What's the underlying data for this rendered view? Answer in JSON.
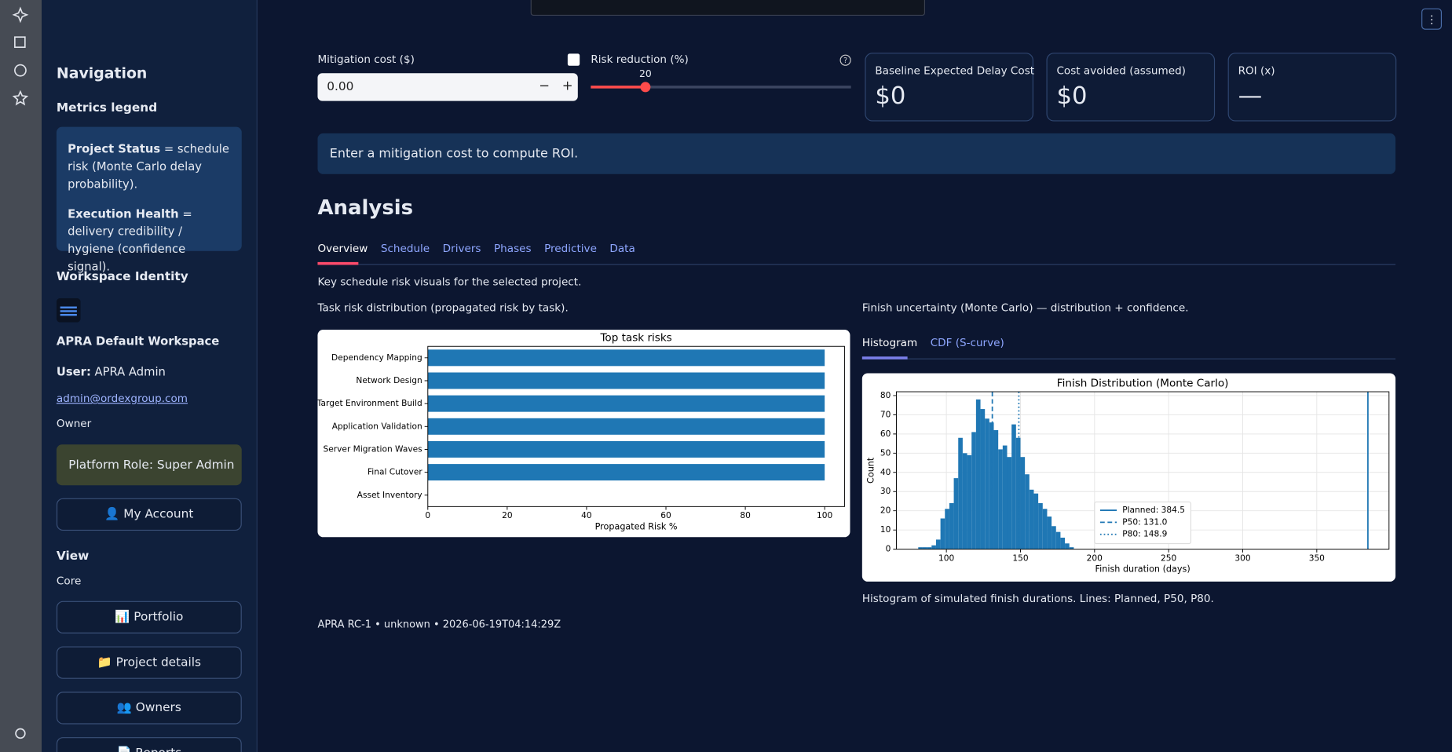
{
  "sidebar": {
    "navigation": "Navigation",
    "metrics_legend": {
      "title": "Metrics legend",
      "items": [
        {
          "term": "Project Status",
          "text": "= schedule risk (Monte Carlo delay probability)."
        },
        {
          "term": "Execution Health",
          "text": "= delivery credibility / hygiene (confidence signal)."
        }
      ]
    },
    "workspace": {
      "title": "Workspace Identity",
      "name": "APRA Default Workspace",
      "user_label": "User:",
      "user": "APRA Admin",
      "email": "admin@ordexgroup.com",
      "role": "Owner",
      "platform_role": "Platform Role: Super Admin"
    },
    "account_button": "👤 My Account",
    "view": {
      "title": "View",
      "mode": "Core",
      "buttons": [
        "📊 Portfolio",
        "📁 Project details",
        "👥 Owners",
        "📄 Reports"
      ]
    }
  },
  "controls": {
    "mitigation_cost": {
      "label": "Mitigation cost ($)",
      "value": "0.00"
    },
    "risk_reduction": {
      "label": "Risk reduction (%)",
      "value": 20
    }
  },
  "metrics": [
    {
      "label": "Baseline Expected Delay Cost",
      "value": "$0"
    },
    {
      "label": "Cost avoided (assumed)",
      "value": "$0"
    },
    {
      "label": "ROI (x)",
      "value": "—"
    }
  ],
  "info": "Enter a mitigation cost to compute ROI.",
  "analysis": {
    "title": "Analysis",
    "tabs": [
      "Overview",
      "Schedule",
      "Drivers",
      "Phases",
      "Predictive",
      "Data"
    ],
    "description": "Key schedule risk visuals for the selected project.",
    "left_caption": "Task risk distribution (propagated risk by task).",
    "right_caption": "Finish uncertainty (Monte Carlo) — distribution + confidence.",
    "chart_tabs": [
      "Histogram",
      "CDF (S-curve)"
    ],
    "histogram_caption": "Histogram of simulated finish durations. Lines: Planned, P50, P80."
  },
  "footer": "APRA RC-1 • unknown • 2026-06-19T04:14:29Z",
  "chart_data": [
    {
      "type": "bar",
      "orientation": "horizontal",
      "title": "Top task risks",
      "x_label": "Propagated Risk %",
      "categories": [
        "Dependency Mapping",
        "Network Design",
        "Target Environment Build",
        "Application Validation",
        "Server Migration Waves",
        "Final Cutover",
        "Asset Inventory"
      ],
      "values": [
        100,
        100,
        100,
        100,
        100,
        100,
        0
      ],
      "color": "#1f77b4",
      "xlim": [
        0,
        105
      ],
      "xticks": [
        0,
        20,
        40,
        60,
        80,
        100
      ],
      "grid": false
    },
    {
      "type": "histogram",
      "title": "Finish Distribution (Monte Carlo)",
      "x_label": "Finish duration (days)",
      "y_label": "Count",
      "bins": [
        81,
        84,
        87,
        90,
        93,
        96,
        99,
        102,
        105,
        108,
        111,
        114,
        117,
        120,
        123,
        126,
        129,
        132,
        135,
        138,
        141,
        144,
        147,
        150,
        153,
        156,
        159,
        162,
        165,
        168,
        171,
        174,
        177,
        180,
        183,
        186
      ],
      "values": [
        1,
        1,
        1,
        2,
        5,
        16,
        21,
        24,
        37,
        58,
        50,
        49,
        61,
        78,
        73,
        68,
        66,
        62,
        52,
        54,
        48,
        65,
        58,
        48,
        39,
        31,
        29,
        24,
        21,
        17,
        12,
        9,
        6,
        3,
        1
      ],
      "color": "#1f77b4",
      "lines": [
        {
          "name": "Planned: 384.5",
          "value": 384.5,
          "style": "solid"
        },
        {
          "name": "P50: 131.0",
          "value": 131.0,
          "style": "dashed"
        },
        {
          "name": "P80: 148.9",
          "value": 148.9,
          "style": "dotted"
        }
      ],
      "xlim": [
        66.25,
        398.75
      ],
      "xticks": [
        100,
        150,
        200,
        250,
        300,
        350
      ],
      "ylim": [
        0,
        82
      ],
      "yticks": [
        0,
        10,
        20,
        30,
        40,
        50,
        60,
        70,
        80
      ],
      "grid": true,
      "legend": "lower center"
    }
  ]
}
